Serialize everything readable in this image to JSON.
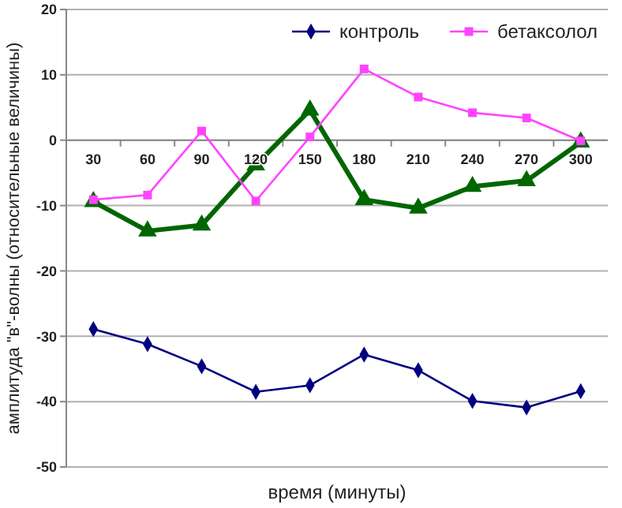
{
  "chart_data": {
    "type": "line",
    "xlabel": "время (минуты)",
    "ylabel": "амплитуда \"в\"-волны (относительные величины)",
    "categories": [
      "30",
      "60",
      "90",
      "120",
      "150",
      "180",
      "210",
      "240",
      "270",
      "300"
    ],
    "series": [
      {
        "name": "контроль",
        "color": "#000080",
        "marker": "diamond",
        "values": [
          -28.9,
          -31.2,
          -34.6,
          -38.5,
          -37.5,
          -32.8,
          -35.2,
          -39.9,
          -40.9,
          -38.4
        ]
      },
      {
        "name": "бетаксолол",
        "color": "#ff44ff",
        "marker": "square",
        "values": [
          -9.1,
          -8.4,
          1.4,
          -9.3,
          0.5,
          10.9,
          6.6,
          4.2,
          3.4,
          -0.1
        ]
      },
      {
        "color": "#006600",
        "marker": "triangle",
        "values": [
          -9.4,
          -13.9,
          -13,
          -3.8,
          4.6,
          -9.1,
          -10.4,
          -7.1,
          -6.2,
          -0.3
        ]
      }
    ],
    "ylim": [
      -50,
      20
    ],
    "yticks": [
      -50,
      -40,
      -30,
      -20,
      -10,
      0,
      10,
      20
    ],
    "grid": "y",
    "legend": "top right"
  }
}
